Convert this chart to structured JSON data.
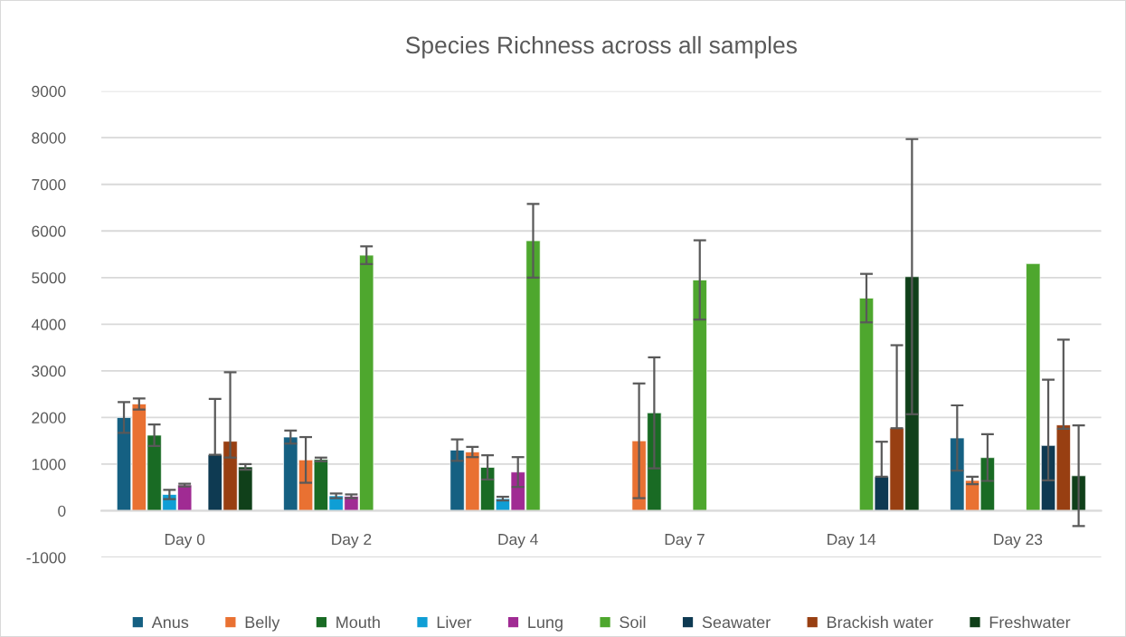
{
  "chart_data": {
    "type": "bar",
    "title": "Species Richness across all samples",
    "categories": [
      "Day 0",
      "Day 2",
      "Day 4",
      "Day 7",
      "Day 14",
      "Day 23"
    ],
    "ylim": [
      -1000,
      9000
    ],
    "yticks": [
      -1000,
      0,
      1000,
      2000,
      3000,
      4000,
      5000,
      6000,
      7000,
      8000,
      9000
    ],
    "grid": "y",
    "legend": "bottom",
    "series": [
      {
        "name": "Anus",
        "color": "#156082",
        "values": [
          2000,
          1580,
          1300,
          null,
          null,
          1560
        ],
        "errors": [
          330,
          140,
          230,
          null,
          null,
          700
        ]
      },
      {
        "name": "Belly",
        "color": "#e97132",
        "values": [
          2290,
          1090,
          1260,
          1500,
          null,
          650
        ],
        "errors": [
          120,
          490,
          110,
          1230,
          null,
          80
        ]
      },
      {
        "name": "Mouth",
        "color": "#196b24",
        "values": [
          1620,
          1100,
          930,
          2100,
          null,
          1140
        ],
        "errors": [
          230,
          40,
          260,
          1190,
          null,
          500
        ]
      },
      {
        "name": "Liver",
        "color": "#0f9ed5",
        "values": [
          350,
          320,
          260,
          null,
          null,
          null
        ],
        "errors": [
          100,
          50,
          40,
          null,
          null,
          null
        ]
      },
      {
        "name": "Lung",
        "color": "#a02b93",
        "values": [
          550,
          310,
          830,
          null,
          null,
          null
        ],
        "errors": [
          30,
          40,
          320,
          null,
          null,
          null
        ]
      },
      {
        "name": "Soil",
        "color": "#4ea72e",
        "values": [
          null,
          5480,
          5790,
          4950,
          4560,
          5300
        ],
        "errors": [
          null,
          190,
          790,
          850,
          520,
          null
        ]
      },
      {
        "name": "Seawater",
        "color": "#0e3a52",
        "values": [
          1200,
          null,
          null,
          null,
          730,
          1400
        ],
        "errors": [
          [
            1200,
            2400
          ],
          null,
          null,
          null,
          [
            730,
            1480
          ],
          [
            650,
            2810
          ]
        ]
      },
      {
        "name": "Brackish water",
        "color": "#983f12",
        "values": [
          1490,
          null,
          null,
          null,
          1770,
          1840
        ],
        "errors": [
          [
            1140,
            2970
          ],
          null,
          null,
          null,
          [
            1770,
            3550
          ],
          [
            1760,
            3670
          ]
        ]
      },
      {
        "name": "Freshwater",
        "color": "#10401a",
        "values": [
          940,
          null,
          null,
          null,
          5020,
          750
        ],
        "errors": [
          60,
          null,
          null,
          null,
          2950,
          1080
        ]
      }
    ]
  }
}
